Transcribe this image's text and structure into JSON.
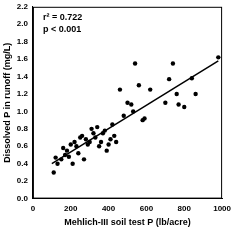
{
  "chart_data": {
    "type": "scatter",
    "x_label": "Mehlich-III soil test P (lb/acre)",
    "y_label": "Dissolved P in runoff (mg/L)",
    "annotations": [
      "r² = 0.722",
      "p < 0.001"
    ],
    "xlim": [
      0,
      1000
    ],
    "xticks": [
      0,
      200,
      400,
      600,
      800,
      1000
    ],
    "ylim": [
      0,
      2.2
    ],
    "yticks": [
      {
        "value": 0,
        "label": "0.0"
      },
      0.2,
      0.4,
      0.6,
      0.8,
      {
        "value": 1,
        "label": "1.0"
      },
      1.2,
      1.4,
      1.6,
      1.8,
      {
        "value": 2,
        "label": "2.0"
      },
      2.2
    ],
    "grid": false,
    "series": [
      {
        "type": "scatter",
        "color": "#000000",
        "marker": "circle",
        "x": [
          110,
          120,
          130,
          150,
          160,
          170,
          180,
          190,
          200,
          210,
          220,
          230,
          240,
          250,
          260,
          270,
          280,
          290,
          300,
          310,
          320,
          330,
          340,
          350,
          360,
          370,
          380,
          390,
          400,
          410,
          420,
          430,
          440,
          460,
          480,
          500,
          520,
          530,
          540,
          560,
          580,
          590,
          620,
          700,
          720,
          740,
          760,
          770,
          800,
          840,
          860,
          980
        ],
        "values": [
          0.3,
          0.47,
          0.4,
          0.45,
          0.58,
          0.5,
          0.55,
          0.48,
          0.62,
          0.4,
          0.65,
          0.6,
          0.52,
          0.7,
          0.72,
          0.45,
          0.68,
          0.62,
          0.65,
          0.8,
          0.75,
          0.7,
          0.82,
          0.6,
          0.65,
          0.75,
          0.78,
          0.55,
          0.62,
          0.68,
          0.85,
          0.72,
          0.65,
          1.25,
          0.95,
          1.1,
          1.08,
          1.0,
          1.55,
          1.3,
          0.9,
          0.92,
          1.25,
          1.1,
          1.37,
          1.55,
          1.2,
          1.08,
          1.05,
          1.38,
          1.2,
          1.62
        ]
      },
      {
        "type": "line",
        "color": "#000000",
        "line_style": "solid",
        "x": [
          100,
          980
        ],
        "values": [
          0.4,
          1.58
        ]
      }
    ]
  }
}
